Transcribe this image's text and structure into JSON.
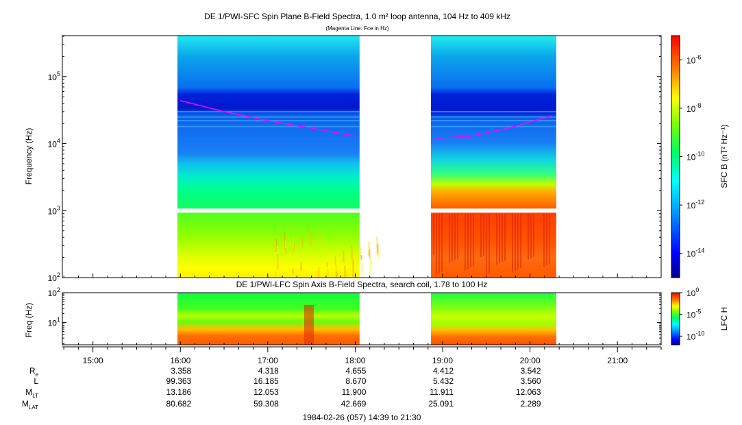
{
  "chart_data": [
    {
      "type": "heatmap",
      "title": "DE 1/PWI-SFC  Spin Plane B-Field Spectra, 1.0 m² loop antenna, 104 Hz to 409 kHz",
      "subtitle": "(Magenta Line: Fce in Hz)",
      "ylabel": "Frequency (Hz)",
      "yscale": "log",
      "ylim": [
        100,
        409000
      ],
      "yticks": [
        {
          "base": "10",
          "exp": "2",
          "value": 100
        },
        {
          "base": "10",
          "exp": "3",
          "value": 1000
        },
        {
          "base": "10",
          "exp": "4",
          "value": 10000
        },
        {
          "base": "10",
          "exp": "5",
          "value": 100000
        }
      ],
      "colorbar": {
        "label": "SFC B (nT² Hz⁻¹)",
        "scale": "log",
        "range": [
          1e-15,
          1e-05
        ],
        "ticks": [
          {
            "base": "10",
            "exp": "-6"
          },
          {
            "base": "10",
            "exp": "-8"
          },
          {
            "base": "10",
            "exp": "-10"
          },
          {
            "base": "10",
            "exp": "-12"
          },
          {
            "base": "10",
            "exp": "-14"
          }
        ]
      },
      "data_intervals": [
        [
          "15:58",
          "18:03"
        ],
        [
          "18:52",
          "20:18"
        ]
      ],
      "fce_line": {
        "color": "#ff00ff",
        "points": [
          [
            "16:00",
            44000
          ],
          [
            "16:30",
            30000
          ],
          [
            "17:00",
            22000
          ],
          [
            "17:30",
            17000
          ],
          [
            "18:00",
            13000
          ],
          [
            "18:55",
            12000
          ],
          [
            "19:20",
            13000
          ],
          [
            "19:45",
            17000
          ],
          [
            "20:15",
            26000
          ]
        ]
      }
    },
    {
      "type": "heatmap",
      "title": "DE 1/PWI-LFC  Spin Axis B-Field Spectra, search coil, 1.78 to 100 Hz",
      "ylabel": "Freq (Hz)",
      "yscale": "log",
      "ylim": [
        1.78,
        100
      ],
      "yticks": [
        {
          "base": "10",
          "exp": "1",
          "value": 10
        },
        {
          "base": "10",
          "exp": "2",
          "value": 100
        }
      ],
      "colorbar": {
        "label": "LFC H",
        "scale": "log",
        "range": [
          1e-12,
          1
        ],
        "ticks": [
          {
            "base": "10",
            "exp": "0"
          },
          {
            "base": "10",
            "exp": "-5"
          },
          {
            "base": "10",
            "exp": "-10"
          }
        ]
      },
      "data_intervals": [
        [
          "15:58",
          "18:03"
        ],
        [
          "18:52",
          "20:18"
        ]
      ]
    }
  ],
  "time_axis": {
    "range": [
      "14:39",
      "21:30"
    ],
    "ticks": [
      "15:00",
      "16:00",
      "17:00",
      "18:00",
      "19:00",
      "20:00",
      "21:00"
    ]
  },
  "ephemeris": {
    "rows": [
      {
        "label": "R",
        "sub": "e",
        "values": [
          "3.358",
          "4.318",
          "4.655",
          "4.412",
          "3.542"
        ]
      },
      {
        "label": "L",
        "sub": "",
        "values": [
          "99.363",
          "16.185",
          "8.670",
          "5.432",
          "3.560"
        ]
      },
      {
        "label": "M",
        "sub": "LT",
        "values": [
          "13.186",
          "12.053",
          "11.900",
          "11.911",
          "12.063"
        ]
      },
      {
        "label": "M",
        "sub": "LAT",
        "values": [
          "80.682",
          "59.308",
          "42.669",
          "25.091",
          "2.289"
        ]
      }
    ],
    "columns_at": [
      "16:00",
      "17:00",
      "18:00",
      "19:00",
      "20:00"
    ]
  },
  "footer": "1984-02-26 (057) 14:39 to 21:30"
}
